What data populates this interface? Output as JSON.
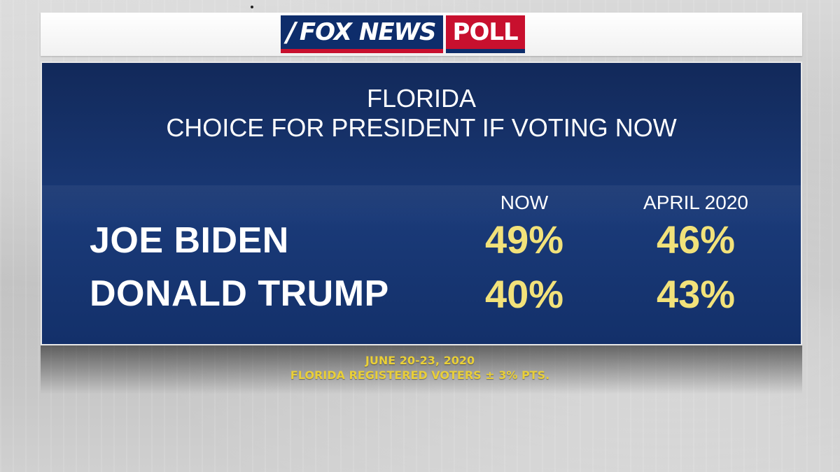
{
  "logo": {
    "fox": "FOX NEWS",
    "poll": "POLL"
  },
  "colors": {
    "panel": "#1a3a78",
    "value": "#f2e27a",
    "footnote": "#e9cf38",
    "red": "#c8102e"
  },
  "chart_data": {
    "type": "table",
    "title": "FLORIDA",
    "subtitle": "CHOICE FOR PRESIDENT IF VOTING NOW",
    "columns": [
      "NOW",
      "APRIL 2020"
    ],
    "rows": [
      {
        "label": "JOE BIDEN",
        "values": [
          "49%",
          "46%"
        ]
      },
      {
        "label": "DONALD TRUMP",
        "values": [
          "40%",
          "43%"
        ]
      }
    ]
  },
  "footnote": {
    "line1": "JUNE 20-23, 2020",
    "line2": "FLORIDA REGISTERED VOTERS ± 3% PTS."
  }
}
